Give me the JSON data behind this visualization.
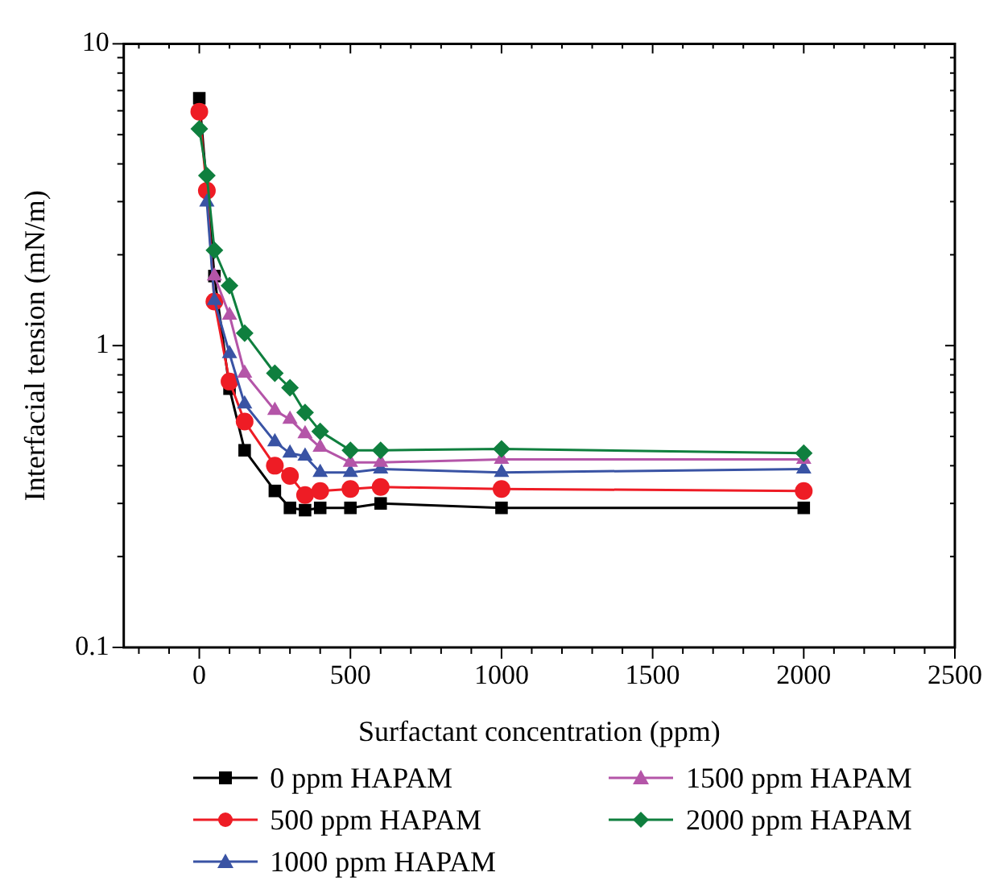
{
  "chart_data": {
    "type": "line",
    "xlabel": "Surfactant concentration (ppm)",
    "ylabel": "Interfacial tension (mN/m)",
    "log": "y",
    "grid": false,
    "legend": "bottom",
    "line_style": "solid",
    "xlim": [
      -250,
      2500
    ],
    "xticks": [
      {
        "value": -200,
        "label": null
      },
      {
        "value": -100,
        "label": null
      },
      0,
      {
        "value": 100,
        "label": null
      },
      {
        "value": 200,
        "label": null
      },
      {
        "value": 300,
        "label": null
      },
      {
        "value": 400,
        "label": null
      },
      500,
      {
        "value": 600,
        "label": null
      },
      {
        "value": 700,
        "label": null
      },
      {
        "value": 800,
        "label": null
      },
      {
        "value": 900,
        "label": null
      },
      1000,
      {
        "value": 1100,
        "label": null
      },
      {
        "value": 1200,
        "label": null
      },
      {
        "value": 1300,
        "label": null
      },
      {
        "value": 1400,
        "label": null
      },
      1500,
      {
        "value": 1600,
        "label": null
      },
      {
        "value": 1700,
        "label": null
      },
      {
        "value": 1800,
        "label": null
      },
      {
        "value": 1900,
        "label": null
      },
      2000,
      {
        "value": 2100,
        "label": null
      },
      {
        "value": 2200,
        "label": null
      },
      {
        "value": 2300,
        "label": null
      },
      {
        "value": 2400,
        "label": null
      },
      2500
    ],
    "ylim": [
      0.1,
      10
    ],
    "yticks": [
      0.1,
      {
        "value": 0.2,
        "label": null
      },
      {
        "value": 0.3,
        "label": null
      },
      {
        "value": 0.4,
        "label": null
      },
      {
        "value": 0.5,
        "label": null
      },
      {
        "value": 0.6,
        "label": null
      },
      {
        "value": 0.7,
        "label": null
      },
      {
        "value": 0.8,
        "label": null
      },
      {
        "value": 0.9,
        "label": null
      },
      1,
      {
        "value": 2,
        "label": null
      },
      {
        "value": 3,
        "label": null
      },
      {
        "value": 4,
        "label": null
      },
      {
        "value": 5,
        "label": null
      },
      {
        "value": 6,
        "label": null
      },
      {
        "value": 7,
        "label": null
      },
      {
        "value": 8,
        "label": null
      },
      {
        "value": 9,
        "label": null
      },
      10
    ],
    "x": [
      0,
      25,
      50,
      100,
      150,
      250,
      300,
      350,
      400,
      500,
      600,
      1000,
      2000
    ],
    "series": [
      {
        "name": "0 ppm HAPAM",
        "color": "#000000",
        "marker": "square",
        "values": [
          6.6,
          null,
          1.7,
          0.72,
          0.45,
          0.33,
          0.29,
          0.285,
          0.29,
          0.29,
          0.3,
          0.29,
          0.29
        ]
      },
      {
        "name": "500 ppm HAPAM",
        "color": "#ee1c25",
        "marker": "circle",
        "values": [
          5.96,
          3.26,
          1.4,
          0.76,
          0.56,
          0.4,
          0.37,
          0.32,
          0.33,
          0.335,
          0.34,
          0.335,
          0.33
        ]
      },
      {
        "name": "1000 ppm HAPAM",
        "color": "#3953a4",
        "marker": "triangle",
        "values": [
          null,
          2.99,
          1.41,
          0.94,
          0.64,
          0.48,
          0.44,
          0.43,
          0.38,
          0.38,
          0.39,
          0.38,
          0.39
        ]
      },
      {
        "name": "1500 ppm HAPAM",
        "color": "#b455a8",
        "marker": "triangle",
        "values": [
          null,
          null,
          1.7,
          1.26,
          0.81,
          0.61,
          0.57,
          0.51,
          0.46,
          0.41,
          0.41,
          0.42,
          0.42
        ]
      },
      {
        "name": "2000 ppm HAPAM",
        "color": "#0f7f3e",
        "marker": "diamond",
        "values": [
          5.23,
          3.66,
          2.07,
          1.58,
          1.1,
          0.81,
          0.725,
          0.6,
          0.52,
          0.45,
          0.45,
          0.455,
          0.44
        ]
      }
    ]
  }
}
